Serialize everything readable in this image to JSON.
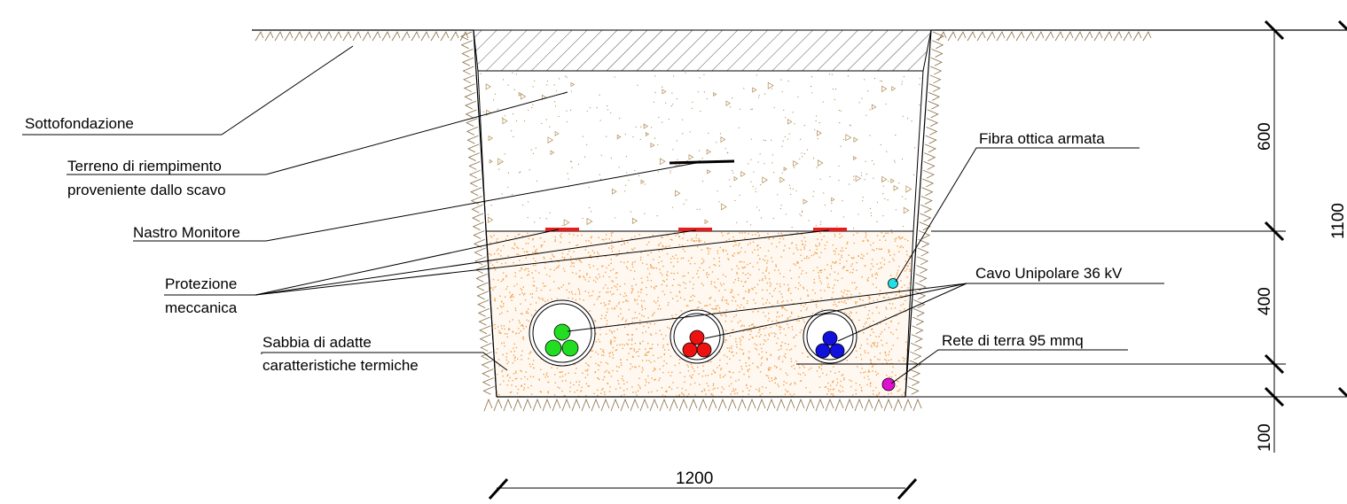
{
  "labels": {
    "sottofondazione": "Sottofondazione",
    "terreno_line1": "Terreno di riempimento",
    "terreno_line2": "proveniente dallo scavo",
    "nastro": "Nastro Monitore",
    "protezione_line1": "Protezione",
    "protezione_line2": "meccanica",
    "sabbia_line1": "Sabbia di adatte",
    "sabbia_line2": "caratteristiche termiche",
    "fibra": "Fibra ottica armata",
    "cavo": "Cavo Unipolare 36 kV",
    "rete": "Rete di terra 95 mmq"
  },
  "dimensions": {
    "d600": "600",
    "d400": "400",
    "d1100": "1100",
    "d100": "100",
    "d1200": "1200"
  },
  "colors": {
    "phase_green": "#22dd22",
    "phase_red": "#ee1111",
    "phase_blue": "#1111dd",
    "fiber": "#22e0e8",
    "ground": "#e010d0",
    "tape": "#e81c1c",
    "sand_dots": "#f0a050",
    "soil_marks": "#b08a50"
  }
}
